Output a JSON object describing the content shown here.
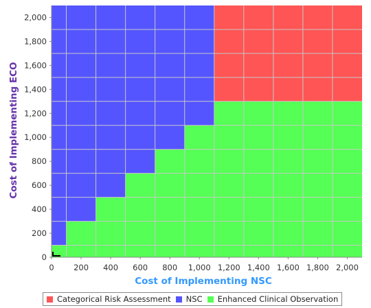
{
  "chart_data": {
    "type": "heatmap",
    "xlabel": "Cost of Implementing NSC",
    "ylabel": "Cost of Implementing ECO",
    "xlim": [
      0,
      2100
    ],
    "ylim": [
      0,
      2100
    ],
    "x_ticks": [
      "0",
      "200",
      "400",
      "600",
      "800",
      "1,000",
      "1,200",
      "1,400",
      "1,600",
      "1,800",
      "2,000"
    ],
    "y_ticks": [
      "0",
      "200",
      "400",
      "600",
      "800",
      "1,000",
      "1,200",
      "1,400",
      "1,600",
      "1,800",
      "2,000"
    ],
    "grid": true,
    "cell_size": 200,
    "cell_offset": 100,
    "legend_position": "bottom",
    "strategies": [
      {
        "key": "cra",
        "name": "Categorical Risk Assessment",
        "color": "#ff5555"
      },
      {
        "key": "nsc",
        "name": "NSC",
        "color": "#5555ff"
      },
      {
        "key": "eco",
        "name": "Enhanced Clinical Observation",
        "color": "#55ff55"
      }
    ],
    "regions": [
      {
        "strategy": "eco",
        "x": [
          0,
          100
        ],
        "y": [
          0,
          100
        ]
      },
      {
        "strategy": "nsc",
        "x": [
          0,
          100
        ],
        "y": [
          100,
          2100
        ]
      },
      {
        "strategy": "eco",
        "x": [
          100,
          300
        ],
        "y": [
          0,
          300
        ]
      },
      {
        "strategy": "nsc",
        "x": [
          100,
          300
        ],
        "y": [
          300,
          2100
        ]
      },
      {
        "strategy": "eco",
        "x": [
          300,
          500
        ],
        "y": [
          0,
          500
        ]
      },
      {
        "strategy": "nsc",
        "x": [
          300,
          500
        ],
        "y": [
          500,
          2100
        ]
      },
      {
        "strategy": "eco",
        "x": [
          500,
          700
        ],
        "y": [
          0,
          700
        ]
      },
      {
        "strategy": "nsc",
        "x": [
          500,
          700
        ],
        "y": [
          700,
          2100
        ]
      },
      {
        "strategy": "eco",
        "x": [
          700,
          900
        ],
        "y": [
          0,
          900
        ]
      },
      {
        "strategy": "nsc",
        "x": [
          700,
          900
        ],
        "y": [
          900,
          2100
        ]
      },
      {
        "strategy": "eco",
        "x": [
          900,
          1100
        ],
        "y": [
          0,
          1100
        ]
      },
      {
        "strategy": "nsc",
        "x": [
          900,
          1100
        ],
        "y": [
          1100,
          2100
        ]
      },
      {
        "strategy": "eco",
        "x": [
          1100,
          2100
        ],
        "y": [
          0,
          1300
        ]
      },
      {
        "strategy": "cra",
        "x": [
          1100,
          2100
        ],
        "y": [
          1300,
          2100
        ]
      }
    ]
  },
  "legend": {
    "items": [
      {
        "label": "Categorical Risk Assessment",
        "color": "#ff5555"
      },
      {
        "label": "NSC",
        "color": "#5555ff"
      },
      {
        "label": "Enhanced Clinical Observation",
        "color": "#55ff55"
      }
    ]
  },
  "colors": {
    "xlabel": "#3399ff",
    "ylabel": "#6633aa",
    "grid": "#c8c8c8",
    "axis": "#888888"
  }
}
